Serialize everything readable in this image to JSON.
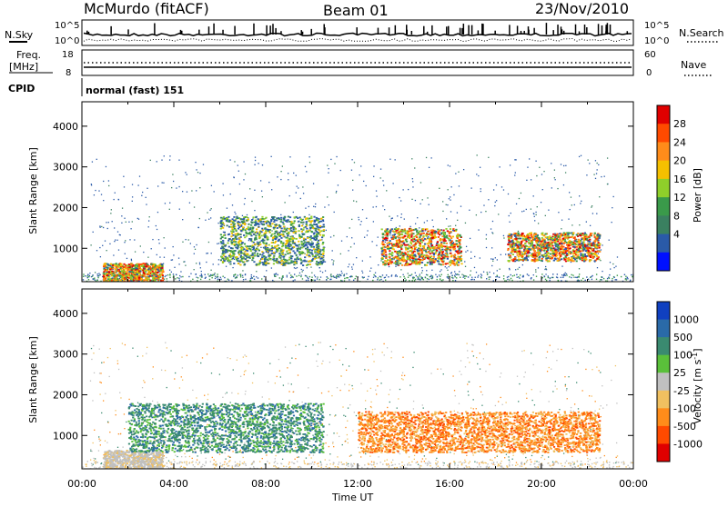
{
  "header": {
    "station": "McMurdo (fitACF)",
    "beam": "Beam 01",
    "date": "23/Nov/2010"
  },
  "noise_panel": {
    "left_label": "N.Sky",
    "right_label": "N.Search",
    "yticks": [
      "10^5",
      "10^0"
    ],
    "right_yticks": [
      "10^5",
      "10^0"
    ]
  },
  "freq_panel": {
    "left_label_1": "Freq.",
    "left_label_2": "[MHz]",
    "right_label": "Nave",
    "left_yticks": [
      "18",
      "8"
    ],
    "right_yticks": [
      "60",
      "0"
    ]
  },
  "cpid": {
    "label": "CPID",
    "value": "normal (fast) 151"
  },
  "chart_data": [
    {
      "type": "heatmap",
      "name": "power",
      "ylabel": "Slant Range [km]",
      "xlabel": "Time UT",
      "ylim": [
        180,
        4600
      ],
      "xlim": [
        0,
        24
      ],
      "yticks": [
        "4000",
        "3000",
        "2000",
        "1000"
      ],
      "xticks": [
        "00:00",
        "04:00",
        "08:00",
        "12:00",
        "16:00",
        "20:00",
        "00:00"
      ],
      "colorbar": {
        "label": "Power [dB]",
        "ticks": [
          "28",
          "24",
          "20",
          "16",
          "12",
          "8",
          "4"
        ],
        "colors": [
          "#e00000",
          "#ff4a00",
          "#ff8c1a",
          "#f5c000",
          "#8fcf2a",
          "#3a9a4a",
          "#3a8060",
          "#2a5aa8",
          "#0010ff"
        ]
      },
      "regions": [
        {
          "t0": 0.9,
          "t1": 3.5,
          "r0": 200,
          "r1": 650,
          "level": "high"
        },
        {
          "t0": 6.0,
          "t1": 10.5,
          "r0": 600,
          "r1": 1800,
          "level": "mid"
        },
        {
          "t0": 13.0,
          "t1": 16.5,
          "r0": 600,
          "r1": 1500,
          "level": "high"
        },
        {
          "t0": 18.5,
          "t1": 22.5,
          "r0": 700,
          "r1": 1400,
          "level": "high"
        }
      ]
    },
    {
      "type": "heatmap",
      "name": "velocity",
      "ylabel": "Slant Range [km]",
      "xlabel": "Time UT",
      "ylim": [
        180,
        4600
      ],
      "xlim": [
        0,
        24
      ],
      "yticks": [
        "4000",
        "3000",
        "2000",
        "1000"
      ],
      "xticks": [
        "00:00",
        "04:00",
        "08:00",
        "12:00",
        "16:00",
        "20:00",
        "00:00"
      ],
      "colorbar": {
        "label": "Velocity [m s^-1]",
        "ticks": [
          "1000",
          "500",
          "100",
          "25",
          "-25",
          "-100",
          "-500",
          "-1000"
        ],
        "colors": [
          "#1040c0",
          "#2a6aa8",
          "#3a8a70",
          "#5ac03a",
          "#c0c0c0",
          "#f0c060",
          "#ff8c1a",
          "#ff4a00",
          "#e00000"
        ]
      },
      "regions": [
        {
          "t0": 0.9,
          "t1": 3.5,
          "r0": 200,
          "r1": 650,
          "level": "zero"
        },
        {
          "t0": 2.0,
          "t1": 10.5,
          "r0": 600,
          "r1": 1800,
          "level": "pos"
        },
        {
          "t0": 12.0,
          "t1": 22.5,
          "r0": 600,
          "r1": 1600,
          "level": "neg"
        }
      ]
    }
  ]
}
